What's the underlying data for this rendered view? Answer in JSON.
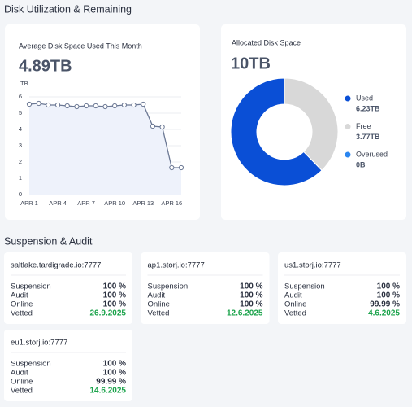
{
  "header": {
    "title": "Disk Utilization & Remaining"
  },
  "chart_data": [
    {
      "type": "line",
      "title": "Average Disk Space Used This Month",
      "subtitle": "4.89TB",
      "y_label": "TB",
      "categories": [
        "APR 1",
        null,
        null,
        "APR 4",
        null,
        null,
        "APR 7",
        null,
        null,
        "APR 10",
        null,
        null,
        "APR 13",
        null,
        null,
        "APR 16",
        null
      ],
      "values": [
        5.55,
        5.6,
        5.5,
        5.5,
        5.45,
        5.4,
        5.45,
        5.45,
        5.4,
        5.45,
        5.5,
        5.5,
        5.55,
        4.2,
        4.15,
        1.65,
        1.65
      ],
      "color": "#6b7894",
      "fill": "#eef2fb",
      "ylim": [
        0,
        6
      ],
      "yticks": [
        0,
        1,
        2,
        3,
        4,
        5,
        6
      ],
      "grid": true
    },
    {
      "type": "pie",
      "title": "Allocated Disk Space",
      "subtitle": "10TB",
      "categories": [
        "Used",
        "Free",
        "Overused"
      ],
      "values": [
        6.23,
        3.77,
        0
      ],
      "value_labels": [
        "6.23TB",
        "3.77TB",
        "0B"
      ],
      "colors": [
        "#0a4fd6",
        "#d8d8d8",
        "#2a86f0"
      ]
    }
  ],
  "audit": {
    "title": "Suspension & Audit",
    "satellites": [
      {
        "name": "saltlake.tardigrade.io:7777",
        "rows": [
          [
            "Suspension",
            "100 %"
          ],
          [
            "Audit",
            "100 %"
          ],
          [
            "Online",
            "100 %"
          ],
          [
            "Vetted",
            "26.9.2025"
          ]
        ]
      },
      {
        "name": "ap1.storj.io:7777",
        "rows": [
          [
            "Suspension",
            "100 %"
          ],
          [
            "Audit",
            "100 %"
          ],
          [
            "Online",
            "100 %"
          ],
          [
            "Vetted",
            "12.6.2025"
          ]
        ]
      },
      {
        "name": "us1.storj.io:7777",
        "rows": [
          [
            "Suspension",
            "100 %"
          ],
          [
            "Audit",
            "100 %"
          ],
          [
            "Online",
            "99.99 %"
          ],
          [
            "Vetted",
            "4.6.2025"
          ]
        ]
      },
      {
        "name": "eu1.storj.io:7777",
        "rows": [
          [
            "Suspension",
            "100 %"
          ],
          [
            "Audit",
            "100 %"
          ],
          [
            "Online",
            "99.99 %"
          ],
          [
            "Vetted",
            "14.6.2025"
          ]
        ]
      }
    ]
  }
}
